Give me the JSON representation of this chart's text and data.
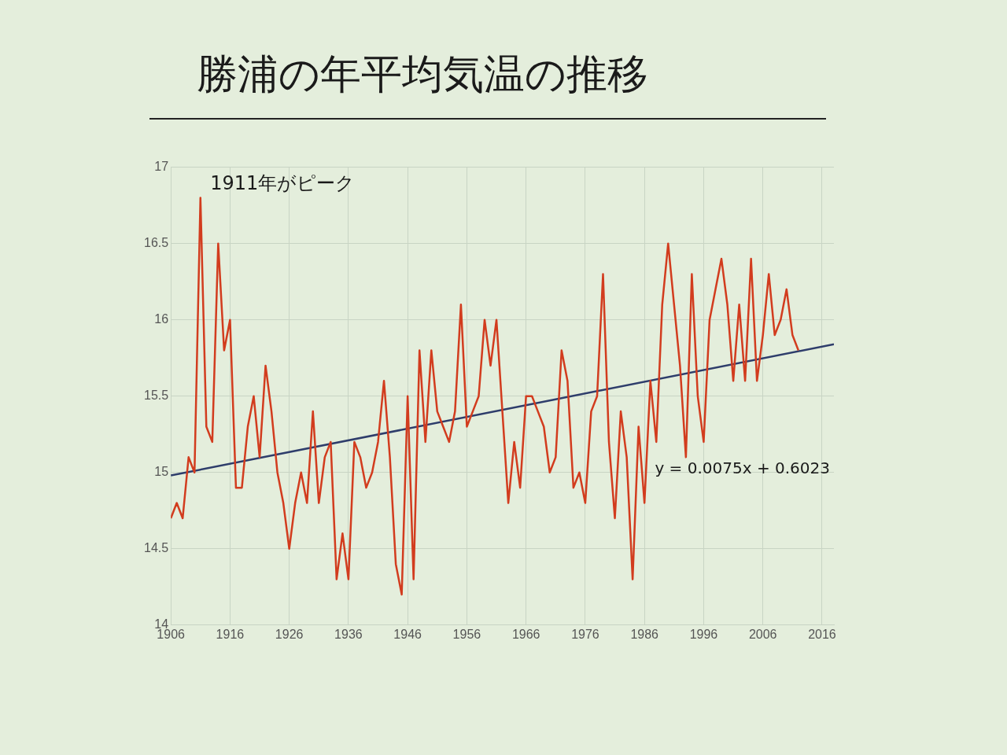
{
  "chart_data": {
    "type": "line",
    "title": "勝浦の年平均気温の推移",
    "annotations": [
      "1911年がピーク",
      "y = 0.0075x + 0.6023"
    ],
    "xlim": [
      1906,
      2018
    ],
    "xticks": [
      1906,
      1916,
      1926,
      1936,
      1946,
      1956,
      1966,
      1976,
      1986,
      1996,
      2006,
      2016
    ],
    "ylim": [
      14,
      17
    ],
    "yticks": [
      14,
      14.5,
      15,
      15.5,
      16,
      16.5,
      17
    ],
    "grid": true,
    "legend": false,
    "marker": "none",
    "line_style": "solid",
    "series": [
      {
        "color": "#d23c1e",
        "x": [
          1906,
          1907,
          1908,
          1909,
          1910,
          1911,
          1912,
          1913,
          1914,
          1915,
          1916,
          1917,
          1918,
          1919,
          1920,
          1921,
          1922,
          1923,
          1924,
          1925,
          1926,
          1927,
          1928,
          1929,
          1930,
          1931,
          1932,
          1933,
          1934,
          1935,
          1936,
          1937,
          1938,
          1939,
          1940,
          1941,
          1942,
          1943,
          1944,
          1945,
          1946,
          1947,
          1948,
          1949,
          1950,
          1951,
          1952,
          1953,
          1954,
          1955,
          1956,
          1957,
          1958,
          1959,
          1960,
          1961,
          1962,
          1963,
          1964,
          1965,
          1966,
          1967,
          1968,
          1969,
          1970,
          1971,
          1972,
          1973,
          1974,
          1975,
          1976,
          1977,
          1978,
          1979,
          1980,
          1981,
          1982,
          1983,
          1984,
          1985,
          1986,
          1987,
          1988,
          1989,
          1990,
          1991,
          1992,
          1993,
          1994,
          1995,
          1996,
          1997,
          1998,
          1999,
          2000,
          2001,
          2002,
          2003,
          2004,
          2005,
          2006,
          2007,
          2008,
          2009,
          2010,
          2011,
          2012
        ],
        "values": [
          14.7,
          14.8,
          14.7,
          15.1,
          15.0,
          16.8,
          15.3,
          15.2,
          16.5,
          15.8,
          16.0,
          14.9,
          14.9,
          15.3,
          15.5,
          15.1,
          15.7,
          15.4,
          15.0,
          14.8,
          14.5,
          14.8,
          15.0,
          14.8,
          15.4,
          14.8,
          15.1,
          15.2,
          14.3,
          14.6,
          14.3,
          15.2,
          15.1,
          14.9,
          15.0,
          15.2,
          15.6,
          15.1,
          14.4,
          14.2,
          15.5,
          14.3,
          15.8,
          15.2,
          15.8,
          15.4,
          15.3,
          15.2,
          15.4,
          16.1,
          15.3,
          15.4,
          15.5,
          16.0,
          15.7,
          16.0,
          15.4,
          14.8,
          15.2,
          14.9,
          15.5,
          15.5,
          15.4,
          15.3,
          15.0,
          15.1,
          15.8,
          15.6,
          14.9,
          15.0,
          14.8,
          15.4,
          15.5,
          16.3,
          15.2,
          14.7,
          15.4,
          15.1,
          14.3,
          15.3,
          14.8,
          15.6,
          15.2,
          16.1,
          16.5,
          16.1,
          15.7,
          15.1,
          16.3,
          15.5,
          15.2,
          16.0,
          16.2,
          16.4,
          16.1,
          15.6,
          16.1,
          15.6,
          16.4,
          15.6,
          15.9,
          16.3,
          15.9,
          16.0,
          16.2,
          15.9,
          15.8
        ]
      },
      {
        "color": "#2e3d6b",
        "x": [
          1906,
          2018
        ],
        "values": [
          14.98,
          15.84
        ]
      }
    ]
  }
}
